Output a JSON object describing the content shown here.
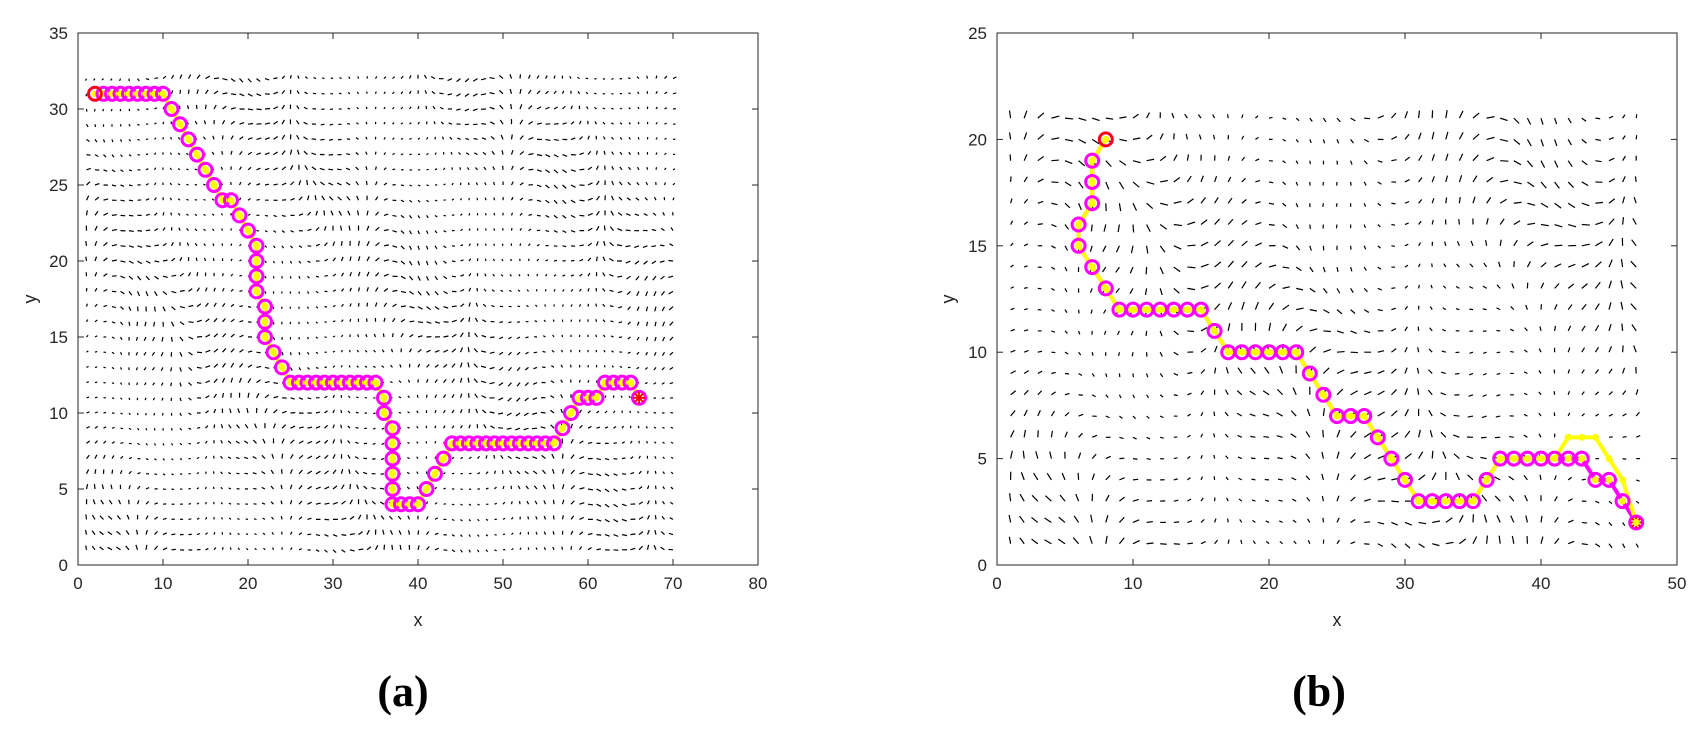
{
  "chart_data": [
    {
      "type": "line",
      "caption": "(a)",
      "xlabel": "x",
      "ylabel": "y",
      "xlim": [
        0,
        80
      ],
      "ylim": [
        0,
        35
      ],
      "xticks": [
        0,
        10,
        20,
        30,
        40,
        50,
        60,
        70,
        80
      ],
      "yticks": [
        0,
        5,
        10,
        15,
        20,
        25,
        30,
        35
      ],
      "grid": false,
      "quiver_field": {
        "x_range": [
          1,
          70
        ],
        "y_range": [
          1,
          32
        ],
        "spacing": 1,
        "color": "#000000"
      },
      "series": [
        {
          "x": [
            2,
            3,
            4,
            5,
            6,
            7,
            8,
            9,
            10,
            11,
            12,
            13,
            14,
            15,
            16,
            17,
            18,
            19,
            20,
            21,
            21,
            21,
            21,
            22,
            22,
            22,
            23,
            24,
            25,
            26,
            27,
            28,
            29,
            30,
            31,
            32,
            33,
            34,
            35,
            36,
            36,
            37,
            37,
            37,
            37,
            37,
            37,
            38,
            39,
            40,
            41,
            42,
            43,
            44,
            45,
            46,
            47,
            48,
            49,
            50,
            51,
            52,
            53,
            54,
            55,
            56,
            57,
            58,
            59,
            60,
            61,
            62,
            63,
            64,
            65,
            66
          ],
          "y": [
            31,
            31,
            31,
            31,
            31,
            31,
            31,
            31,
            31,
            30,
            29,
            28,
            27,
            26,
            25,
            24,
            24,
            23,
            22,
            21,
            20,
            19,
            18,
            17,
            16,
            15,
            14,
            13,
            12,
            12,
            12,
            12,
            12,
            12,
            12,
            12,
            12,
            12,
            12,
            11,
            10,
            9,
            8,
            7,
            6,
            5,
            4,
            4,
            4,
            4,
            5,
            6,
            7,
            8,
            8,
            8,
            8,
            8,
            8,
            8,
            8,
            8,
            8,
            8,
            8,
            8,
            9,
            10,
            11,
            11,
            11,
            12,
            12,
            12,
            12,
            11
          ],
          "path_color": "#ffff00",
          "marker_color": "#ff00ff",
          "start": [
            2,
            31
          ],
          "goal": [
            66,
            11
          ],
          "endpoint_color": "#ff0000"
        }
      ]
    },
    {
      "type": "line",
      "caption": "(b)",
      "xlabel": "x",
      "ylabel": "y",
      "xlim": [
        0,
        50
      ],
      "ylim": [
        0,
        25
      ],
      "xticks": [
        0,
        10,
        20,
        30,
        40,
        50
      ],
      "yticks": [
        0,
        5,
        10,
        15,
        20,
        25
      ],
      "grid": false,
      "quiver_field": {
        "x_range": [
          1,
          47
        ],
        "y_range": [
          1,
          21
        ],
        "spacing": 1,
        "color": "#000000"
      },
      "series": [
        {
          "x": [
            8,
            7,
            7,
            7,
            6,
            6,
            7,
            8,
            9,
            10,
            11,
            12,
            13,
            14,
            15,
            16,
            17,
            18,
            19,
            20,
            21,
            22,
            23,
            24,
            25,
            26,
            27,
            28,
            29,
            30,
            31,
            32,
            33,
            34,
            35,
            36,
            37,
            38,
            39,
            40,
            41,
            42,
            43,
            44,
            45,
            46,
            47
          ],
          "y": [
            20,
            19,
            18,
            17,
            16,
            15,
            14,
            13,
            12,
            12,
            12,
            12,
            12,
            12,
            12,
            11,
            10,
            10,
            10,
            10,
            10,
            10,
            9,
            8,
            7,
            7,
            7,
            6,
            5,
            4,
            3,
            3,
            3,
            3,
            3,
            4,
            5,
            5,
            5,
            5,
            5,
            5,
            5,
            4,
            4,
            3,
            2
          ],
          "path_color": "#ff00ff",
          "marker_color": "#ff00ff",
          "start": [
            8,
            20
          ],
          "goal": [
            47,
            2
          ],
          "endpoint_color": "#ff0000"
        },
        {
          "x": [
            8,
            7,
            7,
            7,
            6,
            6,
            7,
            8,
            9,
            10,
            11,
            12,
            13,
            14,
            15,
            16,
            17,
            18,
            19,
            20,
            21,
            22,
            23,
            24,
            25,
            26,
            27,
            28,
            29,
            30,
            31,
            32,
            33,
            34,
            35,
            36,
            37,
            38,
            39,
            40,
            41,
            42,
            43,
            44,
            45,
            46,
            47
          ],
          "y": [
            20,
            19,
            18,
            17,
            16,
            15,
            14,
            13,
            12,
            12,
            12,
            12,
            12,
            12,
            12,
            11,
            10,
            10,
            10,
            10,
            10,
            10,
            9,
            8,
            7,
            7,
            7,
            6,
            5,
            4,
            3,
            3,
            3,
            3,
            3,
            4,
            5,
            5,
            5,
            5,
            5,
            6,
            6,
            6,
            5,
            4,
            2
          ],
          "path_color": "#ffff00",
          "marker_color": "#ffff00"
        }
      ]
    }
  ]
}
